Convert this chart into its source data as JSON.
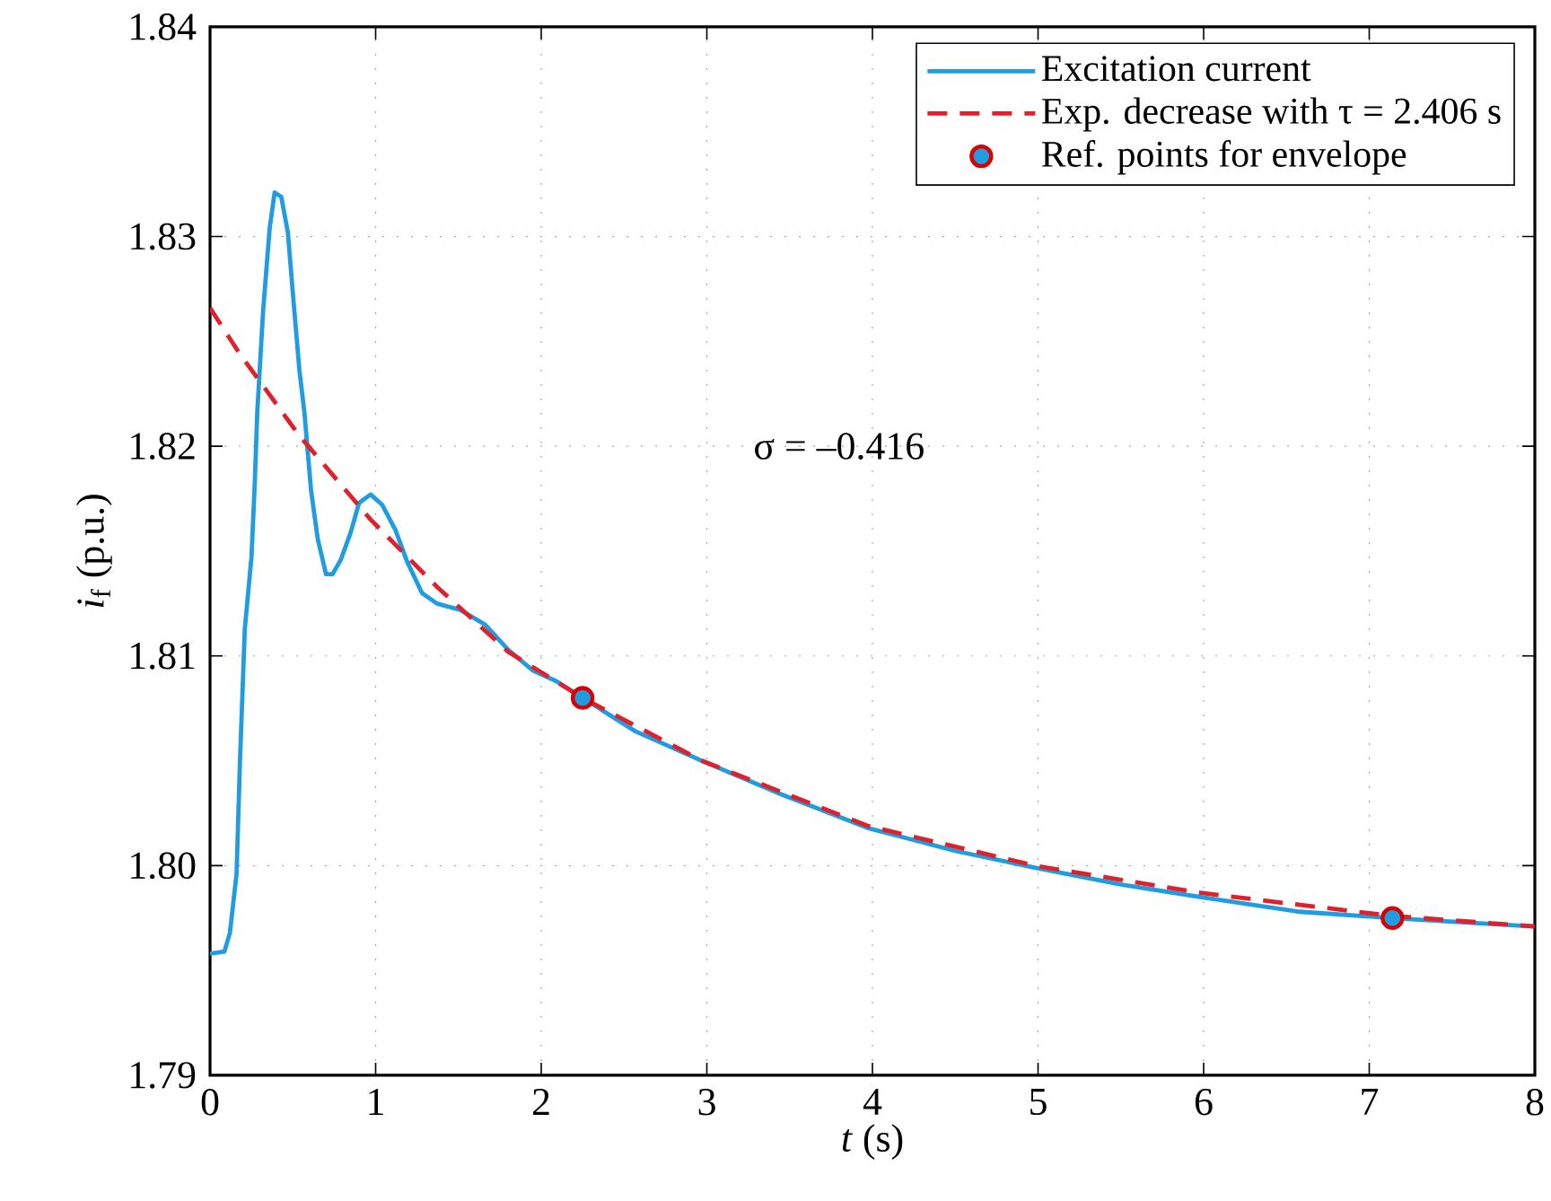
{
  "chart_data": {
    "type": "line",
    "xlabel": "*t* (s)",
    "ylabel": "*i*$_{f}$ (p.u.)",
    "xlim": [
      0,
      8
    ],
    "ylim": [
      1.79,
      1.84
    ],
    "xticks": [
      0,
      1,
      2,
      3,
      4,
      5,
      6,
      7,
      8
    ],
    "yticks": [
      1.79,
      {
        "value": 1.8,
        "label": "1.80"
      },
      1.81,
      1.82,
      1.83,
      1.84
    ],
    "grid": true,
    "legend": "top right",
    "annotations": [
      "σ = –0.416"
    ],
    "series": [
      {
        "name": "Excitation current",
        "type": "line",
        "color": "#1f9de0",
        "line_style": "solid",
        "marker": "none",
        "x": [
          0.0,
          0.087,
          0.12,
          0.16,
          0.18,
          0.21,
          0.25,
          0.27,
          0.285,
          0.32,
          0.36,
          0.39,
          0.43,
          0.47,
          0.5,
          0.54,
          0.57,
          0.61,
          0.65,
          0.7,
          0.74,
          0.79,
          0.85,
          0.9,
          0.97,
          1.04,
          1.12,
          1.19,
          1.28,
          1.37,
          1.51,
          1.66,
          1.8,
          1.95,
          2.09,
          2.25,
          2.57,
          2.97,
          3.45,
          3.97,
          4.5,
          4.98,
          5.5,
          5.98,
          6.58,
          7.14,
          7.99
        ],
        "values": [
          1.7958,
          1.7959,
          1.7968,
          1.7996,
          1.8048,
          1.8113,
          1.8147,
          1.8182,
          1.8216,
          1.8264,
          1.8304,
          1.8321,
          1.8319,
          1.8302,
          1.8273,
          1.8236,
          1.8216,
          1.8179,
          1.8156,
          1.8139,
          1.8139,
          1.8146,
          1.8159,
          1.8173,
          1.8177,
          1.8172,
          1.816,
          1.8145,
          1.813,
          1.8125,
          1.8122,
          1.8115,
          1.8103,
          1.8093,
          1.8088,
          1.808,
          1.8064,
          1.805,
          1.8034,
          1.8018,
          1.8007,
          1.7999,
          1.7991,
          1.7985,
          1.7978,
          1.7975,
          1.7971
        ]
      },
      {
        "name": "Exp. decrease with τ = 2.406 s",
        "type": "line",
        "color": "#e0202a",
        "line_style": "dashed",
        "marker": "none",
        "x": [
          0.0,
          0.18,
          0.54,
          0.97,
          1.37,
          1.8,
          2.25,
          2.97,
          3.97,
          4.98,
          5.98,
          7.14,
          8.0
        ],
        "values": [
          1.8266,
          1.8244,
          1.8205,
          1.8165,
          1.8133,
          1.8102,
          1.808,
          1.805,
          1.8019,
          1.8,
          1.7987,
          1.7976,
          1.7971
        ]
      },
      {
        "name": "Ref. points for envelope",
        "type": "scatter",
        "color": "#1f9de0",
        "marker": "circle",
        "x": [
          2.25,
          7.14
        ],
        "values": [
          1.808,
          1.7975
        ]
      }
    ]
  }
}
